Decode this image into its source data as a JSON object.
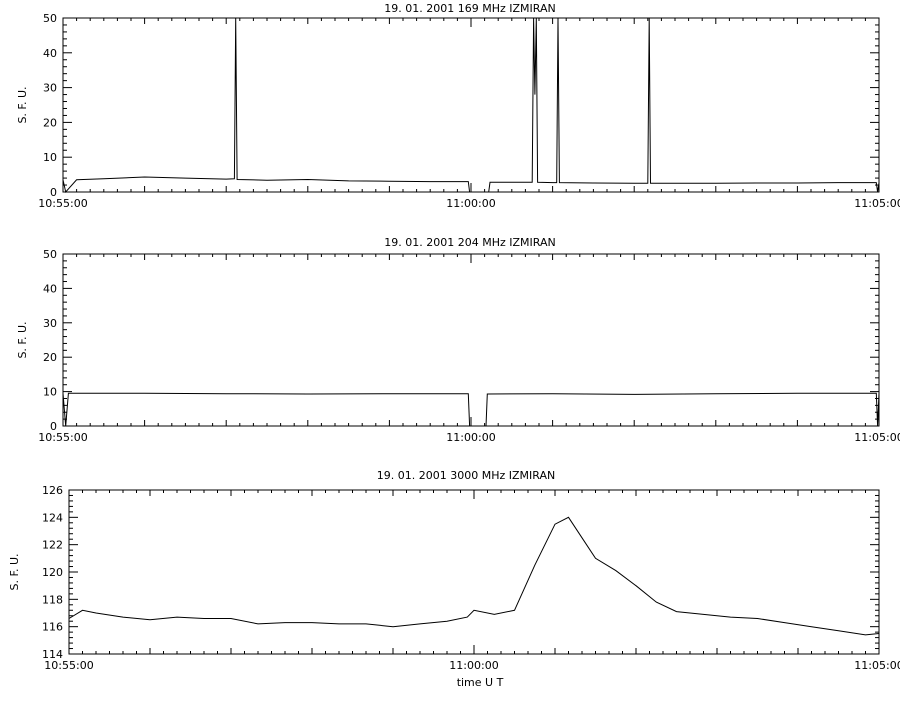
{
  "chart_data": [
    {
      "type": "line",
      "title": "19. 01. 2001   169 MHz   IZMIRAN",
      "ylabel": "S. F. U.",
      "xlabel": "",
      "x_ticks": [
        "10:55:00",
        "11:00:00",
        "11:05:00"
      ],
      "y_ticks": [
        0,
        10,
        20,
        30,
        40,
        50
      ],
      "xlim": [
        "10:55:00",
        "11:05:00"
      ],
      "ylim": [
        0,
        50
      ],
      "series": [
        {
          "x": [
            "10:55:00",
            "10:55:02",
            "10:55:10",
            "10:55:30",
            "10:56:00",
            "10:56:30",
            "10:57:00",
            "10:57:06",
            "10:57:07",
            "10:57:08",
            "10:57:30",
            "10:58:00",
            "10:58:30",
            "10:59:00",
            "10:59:30",
            "10:59:58",
            "10:59:59",
            "11:00:13",
            "11:00:14",
            "11:00:30",
            "11:00:45",
            "11:00:46",
            "11:00:47",
            "11:00:48",
            "11:00:49",
            "11:01:00",
            "11:01:03",
            "11:01:04",
            "11:01:05",
            "11:01:30",
            "11:02:00",
            "11:02:10",
            "11:02:11",
            "11:02:12",
            "11:02:30",
            "11:03:00",
            "11:03:30",
            "11:04:00",
            "11:04:30",
            "11:04:58",
            "11:04:59",
            "11:05:00"
          ],
          "values": [
            3.5,
            0,
            3.5,
            3.8,
            4.3,
            4.0,
            3.7,
            3.8,
            50,
            3.6,
            3.4,
            3.6,
            3.2,
            3.1,
            3.0,
            3.0,
            0,
            0,
            2.8,
            2.8,
            2.8,
            50,
            28,
            50,
            2.8,
            2.7,
            2.7,
            50,
            2.7,
            2.6,
            2.5,
            2.5,
            50,
            2.5,
            2.5,
            2.5,
            2.6,
            2.6,
            2.7,
            2.7,
            0,
            2.7
          ]
        }
      ]
    },
    {
      "type": "line",
      "title": "19. 01. 2001   204 MHz   IZMIRAN",
      "ylabel": "S. F. U.",
      "xlabel": "",
      "x_ticks": [
        "10:55:00",
        "11:00:00",
        "11:05:00"
      ],
      "y_ticks": [
        0,
        10,
        20,
        30,
        40,
        50
      ],
      "xlim": [
        "10:55:00",
        "11:05:00"
      ],
      "ylim": [
        0,
        50
      ],
      "series": [
        {
          "x": [
            "10:55:00",
            "10:55:02",
            "10:55:04",
            "10:56:00",
            "10:57:00",
            "10:58:00",
            "10:59:00",
            "10:59:58",
            "10:59:59",
            "11:00:11",
            "11:00:12",
            "11:01:00",
            "11:02:00",
            "11:03:00",
            "11:04:00",
            "11:04:58",
            "11:04:59",
            "11:05:00"
          ],
          "values": [
            9.5,
            0,
            9.5,
            9.5,
            9.4,
            9.3,
            9.4,
            9.4,
            0,
            0,
            9.3,
            9.4,
            9.2,
            9.4,
            9.5,
            9.5,
            0,
            9.5
          ]
        }
      ]
    },
    {
      "type": "line",
      "title": "19. 01. 2001   3000 MHz   IZMIRAN",
      "ylabel": "S. F. U.",
      "xlabel": "time  U T",
      "x_ticks": [
        "10:55:00",
        "11:00:00",
        "11:05:00"
      ],
      "y_ticks": [
        114,
        116,
        118,
        120,
        122,
        124,
        126
      ],
      "xlim": [
        "10:55:00",
        "11:05:00"
      ],
      "ylim": [
        114,
        126
      ],
      "series": [
        {
          "x": [
            "10:55:00",
            "10:55:10",
            "10:55:20",
            "10:55:40",
            "10:56:00",
            "10:56:20",
            "10:56:40",
            "10:57:00",
            "10:57:20",
            "10:57:40",
            "10:58:00",
            "10:58:20",
            "10:58:40",
            "10:59:00",
            "10:59:20",
            "10:59:40",
            "10:59:55",
            "11:00:00",
            "11:00:15",
            "11:00:30",
            "11:00:45",
            "11:01:00",
            "11:01:10",
            "11:01:20",
            "11:01:30",
            "11:01:45",
            "11:02:00",
            "11:02:15",
            "11:02:30",
            "11:02:50",
            "11:03:10",
            "11:03:30",
            "11:03:50",
            "11:04:10",
            "11:04:30",
            "11:04:50",
            "11:05:00"
          ],
          "values": [
            116.6,
            117.2,
            117.0,
            116.7,
            116.5,
            116.7,
            116.6,
            116.6,
            116.2,
            116.3,
            116.3,
            116.2,
            116.2,
            116.0,
            116.2,
            116.4,
            116.7,
            117.2,
            116.9,
            117.2,
            120.5,
            123.5,
            124.0,
            122.5,
            121.0,
            120.1,
            119.0,
            117.8,
            117.1,
            116.9,
            116.7,
            116.6,
            116.3,
            116.0,
            115.7,
            115.4,
            115.5
          ]
        }
      ]
    }
  ]
}
